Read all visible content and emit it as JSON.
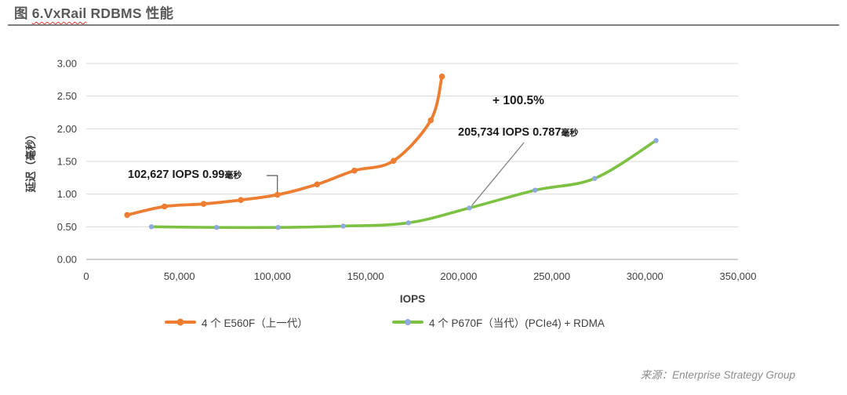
{
  "title": {
    "prefix": "图 ",
    "spellcheck_word": "6.VxRail",
    "suffix": " RDBMS 性能"
  },
  "footer": {
    "label": "来源：",
    "source": "Enterprise Strategy Group"
  },
  "chart_data": {
    "type": "line",
    "title": "图 6.VxRail RDBMS 性能",
    "xlabel": "IOPS",
    "ylabel": "延迟（毫秒）",
    "xlim": [
      0,
      350000
    ],
    "ylim": [
      0,
      3
    ],
    "grid": "horizontal-only",
    "legend_position": "bottom-center",
    "x_ticks": [
      [
        0,
        "0"
      ],
      [
        50000,
        "50,000"
      ],
      [
        100000,
        "100,000"
      ],
      [
        150000,
        "150,000"
      ],
      [
        200000,
        "200,000"
      ],
      [
        250000,
        "250,000"
      ],
      [
        300000,
        "300,000"
      ],
      [
        350000,
        "350,000"
      ]
    ],
    "y_ticks": [
      [
        0,
        "0.00"
      ],
      [
        0.5,
        "0.50"
      ],
      [
        1,
        "1.00"
      ],
      [
        1.5,
        "1.50"
      ],
      [
        2,
        "2.00"
      ],
      [
        2.5,
        "2.50"
      ],
      [
        3,
        "3.00"
      ]
    ],
    "colors": {
      "grid": "#D9D9D9",
      "axis_line": "#BFBFBF",
      "tick_text": "#404040",
      "annotation_text": "#1a1a1a",
      "callout_elbow": "#595959",
      "callout_line": "#808080",
      "e560f_orange": "#ED7D31",
      "p670f_green": "#7DC142",
      "p670f_marker_blue": "#8FAADC"
    },
    "series": [
      {
        "id": "e560f",
        "name": "4 个 E560F（上一代）",
        "line_color": "#ED7D31",
        "marker_color": "#ED7D31",
        "marker_r": 3.8,
        "line_width": 3.8,
        "points": [
          [
            22000,
            0.68
          ],
          [
            42000,
            0.81
          ],
          [
            63000,
            0.85
          ],
          [
            83000,
            0.91
          ],
          [
            102627,
            0.99
          ],
          [
            124000,
            1.15
          ],
          [
            144000,
            1.36
          ],
          [
            165000,
            1.51
          ],
          [
            185000,
            2.13
          ],
          [
            191000,
            2.8
          ]
        ]
      },
      {
        "id": "p670f",
        "name": "4 个 P670F（当代）(PCIe4) + RDMA",
        "line_color": "#7DC142",
        "marker_color": "#8FAADC",
        "marker_r": 3.2,
        "line_width": 3.6,
        "points": [
          [
            35000,
            0.5
          ],
          [
            70000,
            0.49
          ],
          [
            103000,
            0.49
          ],
          [
            138000,
            0.51
          ],
          [
            173000,
            0.56
          ],
          [
            205734,
            0.787
          ],
          [
            241000,
            1.06
          ],
          [
            273000,
            1.24
          ],
          [
            306000,
            1.82
          ]
        ]
      }
    ],
    "annotations": [
      {
        "id": "e560f-label",
        "text": "102,627 IOPS 0.99",
        "suffix": "毫秒",
        "anchor": [
          102627,
          0.99
        ],
        "callout": "elbow"
      },
      {
        "id": "improvement",
        "text": "+ 100.5%",
        "suffix": "",
        "anchor": null,
        "callout": "none"
      },
      {
        "id": "p670f-label",
        "text": "205,734 IOPS 0.787",
        "suffix": "毫秒",
        "anchor": [
          205734,
          0.787
        ],
        "callout": "line"
      }
    ]
  }
}
